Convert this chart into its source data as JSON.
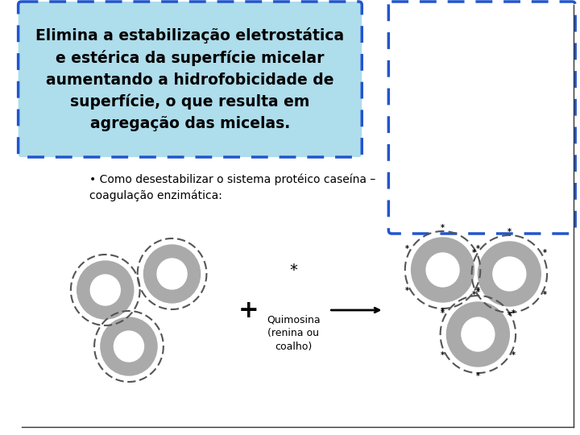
{
  "title_lines": [
    "Elimina a estabilização eletrostática",
    "e estérica da superfície micelar",
    "aumentando a hidrofobicidade de",
    "superfície, o que resulta em",
    "agregação das micelas."
  ],
  "title_box_color": "#aeddec",
  "title_box_border_color": "#2255cc",
  "subtitle_text": "Como desestabilizar o sistema protéico caseína –\ncoagulação enzimática:",
  "quimosina_text": "Quimosina\n(renina ou\ncoalho)",
  "bg_color": "#ffffff",
  "micelle_outer_color": "#aaaaaa",
  "micelle_inner_color": "#ffffff",
  "micelle_dash_color": "#555555"
}
